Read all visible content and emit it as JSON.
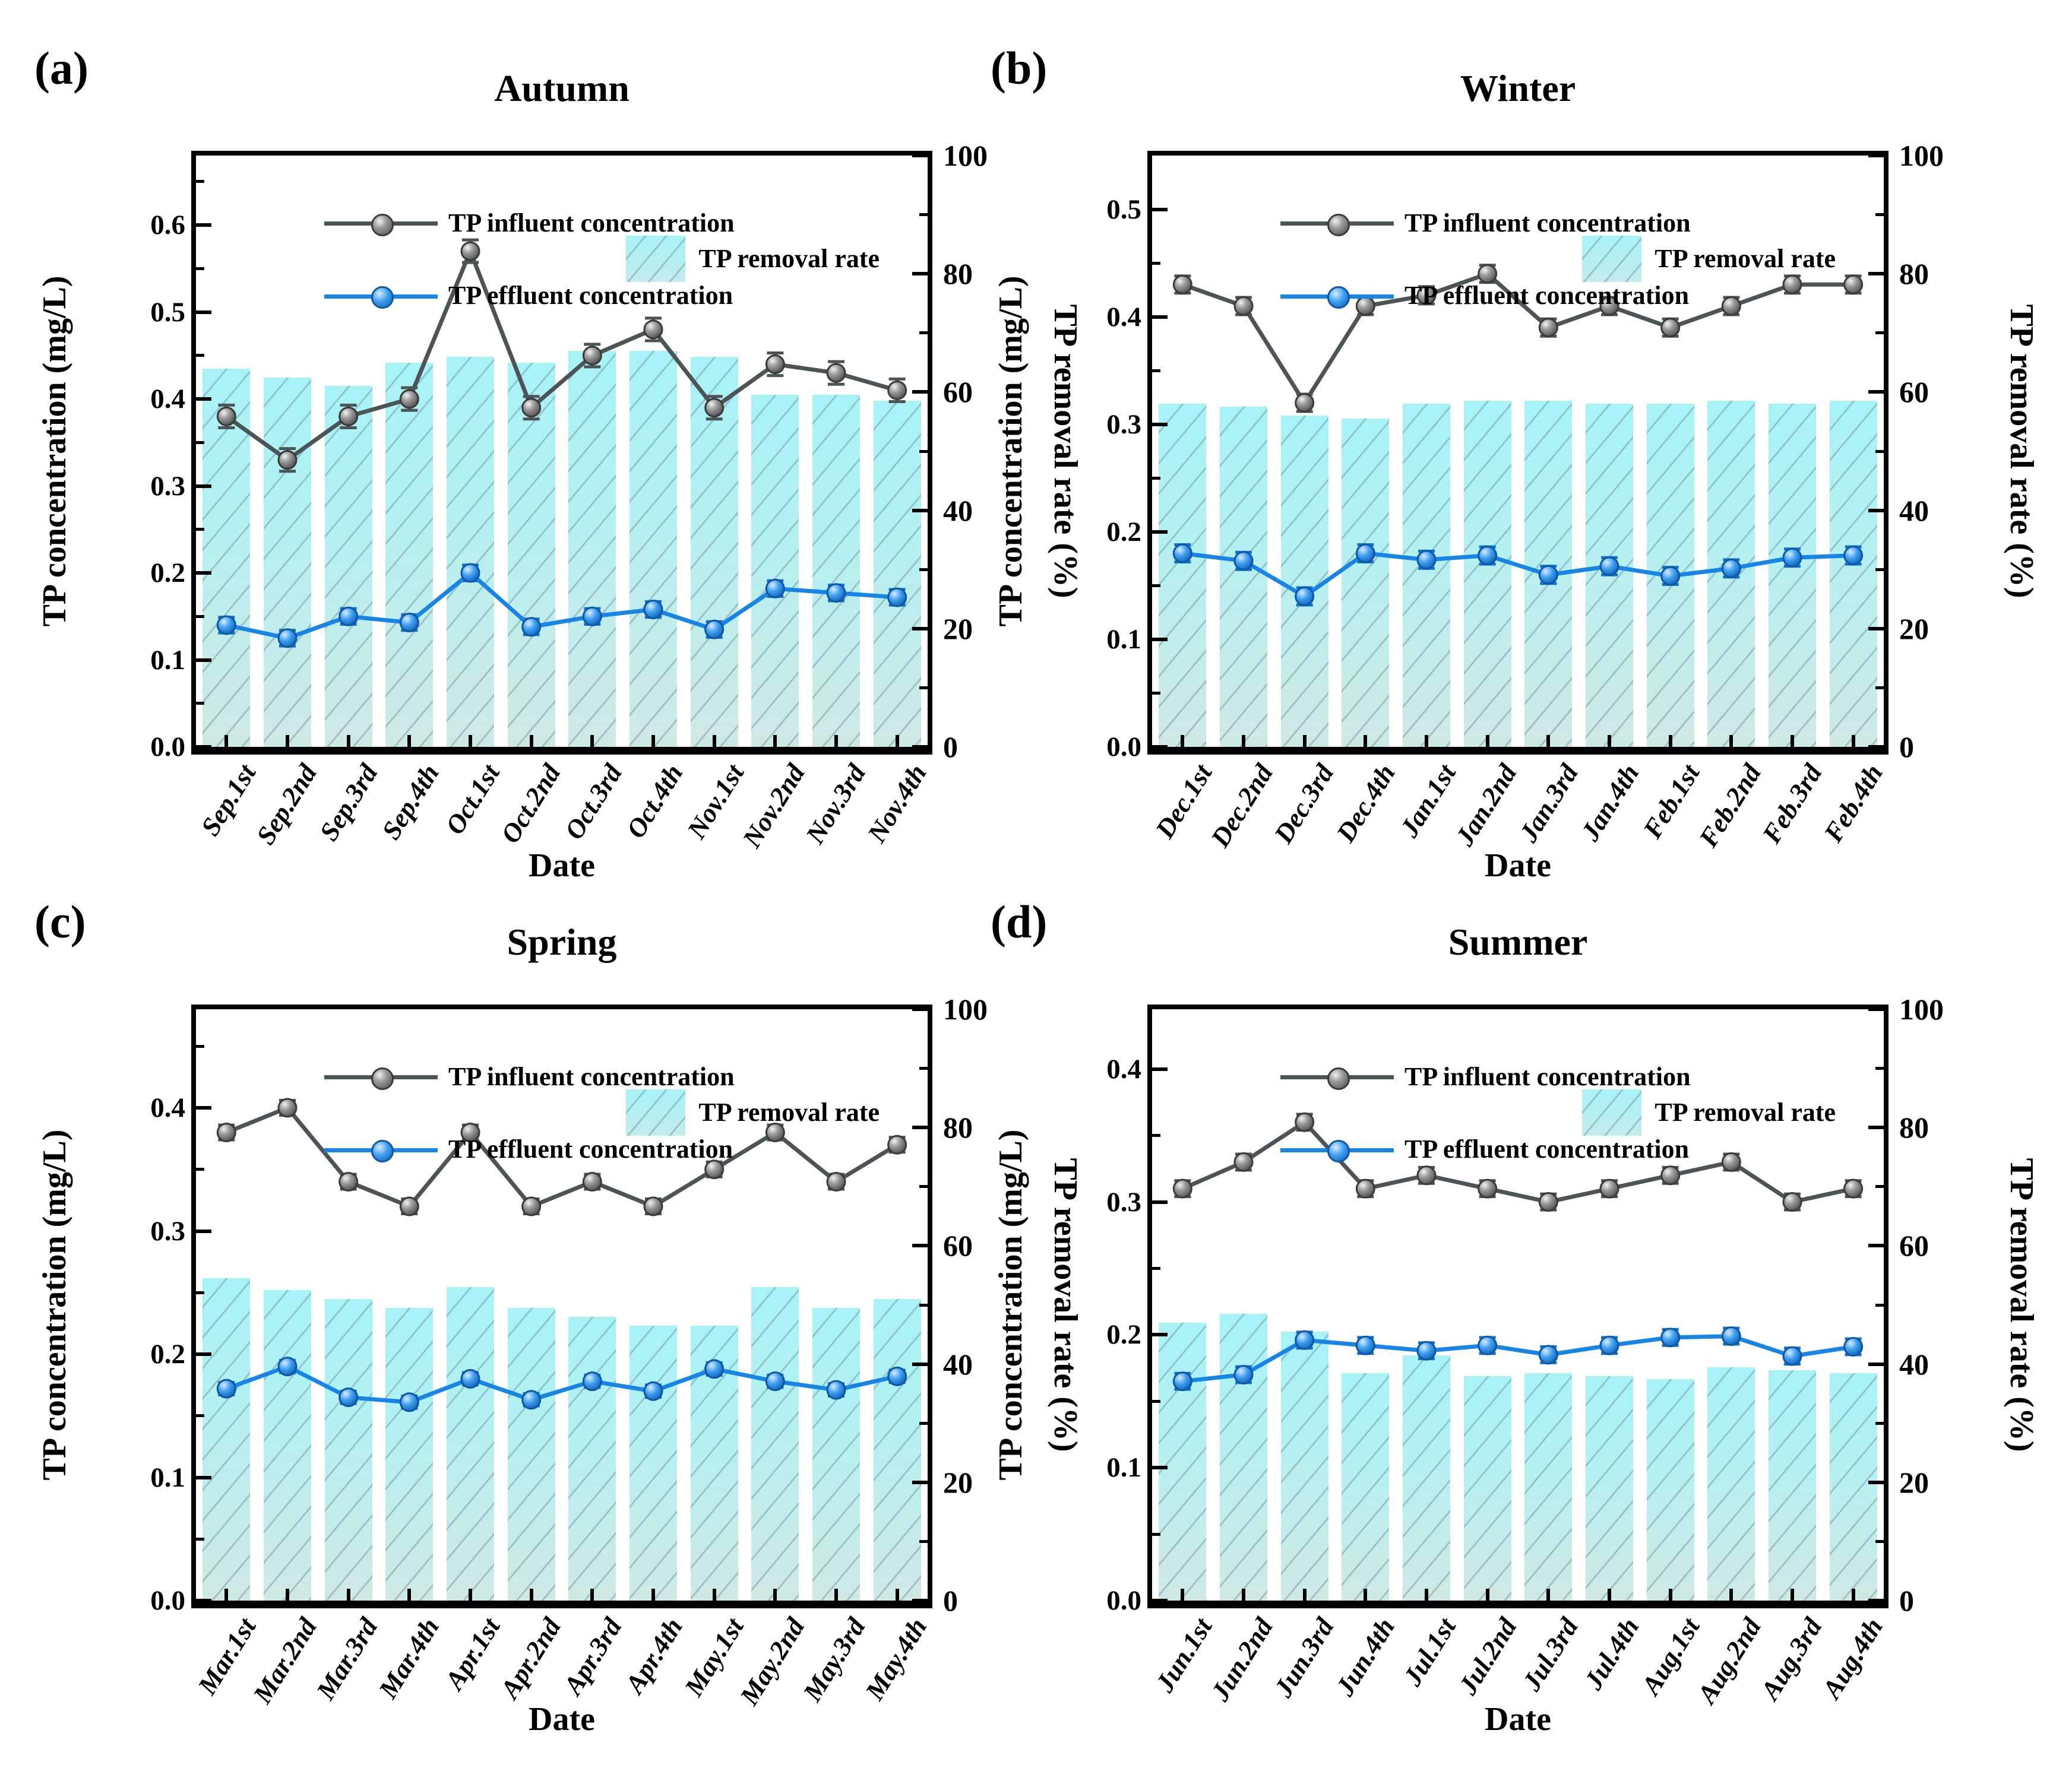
{
  "figure": {
    "x_axis_label": "Date",
    "y_left_label": "TP concentration (mg/L)",
    "y_right_label": "TP removal rate (%)"
  },
  "legend": {
    "influent": "TP influent concentration",
    "effluent": "TP effluent concentration",
    "removal": "TP removal rate"
  },
  "colors": {
    "influent_line": "#4c5456",
    "influent_err": "#4c5456",
    "effluent_line": "#1784e8",
    "effluent_err": "#1272cc",
    "bar_top": "#a7f3f8",
    "bar_bottom": "#cfe9e4",
    "axis": "#000000"
  },
  "chart_data": [
    {
      "panel_tag": "(a)",
      "title": "Autumn",
      "type": "bar+line",
      "xlabel": "Date",
      "ylabel_left": "TP concentration (mg/L)",
      "ylabel_right": "TP removal rate (%)",
      "categories": [
        "Sep.1st",
        "Sep.2nd",
        "Sep.3rd",
        "Sep.4th",
        "Oct.1st",
        "Oct.2nd",
        "Oct.3rd",
        "Oct.4th",
        "Nov.1st",
        "Nov.2nd",
        "Nov.3rd",
        "Nov.4th"
      ],
      "ylim_left": [
        0,
        0.68
      ],
      "yticks_left": [
        0,
        0.1,
        0.2,
        0.3,
        0.4,
        0.5,
        0.6
      ],
      "ylim_right": [
        0,
        100
      ],
      "yticks_right": [
        0,
        20,
        40,
        60,
        80,
        100
      ],
      "series": [
        {
          "name": "TP influent concentration",
          "type": "line",
          "axis": "left",
          "unit": "mg/L",
          "values": [
            0.38,
            0.33,
            0.38,
            0.4,
            0.57,
            0.39,
            0.45,
            0.48,
            0.39,
            0.44,
            0.43,
            0.41
          ],
          "error": 0.013
        },
        {
          "name": "TP effluent concentration",
          "type": "line",
          "axis": "left",
          "unit": "mg/L",
          "values": [
            0.14,
            0.125,
            0.15,
            0.143,
            0.2,
            0.138,
            0.15,
            0.158,
            0.135,
            0.182,
            0.177,
            0.172
          ],
          "error": 0.009
        },
        {
          "name": "TP removal rate",
          "type": "bar",
          "axis": "right",
          "unit": "%",
          "values": [
            64,
            62.5,
            61,
            65,
            66,
            65,
            67,
            67,
            66,
            59.5,
            59.5,
            58.5
          ]
        }
      ]
    },
    {
      "panel_tag": "(b)",
      "title": "Winter",
      "type": "bar+line",
      "xlabel": "Date",
      "ylabel_left": "TP concentration (mg/L)",
      "ylabel_right": "TP removal rate (%)",
      "categories": [
        "Dec.1st",
        "Dec.2nd",
        "Dec.3rd",
        "Dec.4th",
        "Jan.1st",
        "Jan.2nd",
        "Jan.3rd",
        "Jan.4th",
        "Feb.1st",
        "Feb.2nd",
        "Feb.3rd",
        "Feb.4th"
      ],
      "ylim_left": [
        0,
        0.55
      ],
      "yticks_left": [
        0,
        0.1,
        0.2,
        0.3,
        0.4,
        0.5
      ],
      "ylim_right": [
        0,
        100
      ],
      "yticks_right": [
        0,
        20,
        40,
        60,
        80,
        100
      ],
      "series": [
        {
          "name": "TP influent concentration",
          "type": "line",
          "axis": "left",
          "unit": "mg/L",
          "values": [
            0.43,
            0.41,
            0.32,
            0.41,
            0.42,
            0.44,
            0.39,
            0.41,
            0.39,
            0.41,
            0.43,
            0.43
          ],
          "error": 0.008
        },
        {
          "name": "TP effluent concentration",
          "type": "line",
          "axis": "left",
          "unit": "mg/L",
          "values": [
            0.18,
            0.173,
            0.14,
            0.18,
            0.174,
            0.178,
            0.16,
            0.168,
            0.159,
            0.166,
            0.176,
            0.178
          ],
          "error": 0.008
        },
        {
          "name": "TP removal rate",
          "type": "bar",
          "axis": "right",
          "unit": "%",
          "values": [
            58,
            57.5,
            56,
            55.5,
            58,
            58.5,
            58.5,
            58,
            58,
            58.5,
            58,
            58.5
          ]
        }
      ]
    },
    {
      "panel_tag": "(c)",
      "title": "Spring",
      "type": "bar+line",
      "xlabel": "Date",
      "ylabel_left": "TP concentration (mg/L)",
      "ylabel_right": "TP removal rate (%)",
      "categories": [
        "Mar.1st",
        "Mar.2nd",
        "Mar.3rd",
        "Mar.4th",
        "Apr.1st",
        "Apr.2nd",
        "Apr.3rd",
        "Apr.4th",
        "May.1st",
        "May.2nd",
        "May.3rd",
        "May.4th"
      ],
      "ylim_left": [
        0,
        0.48
      ],
      "yticks_left": [
        0,
        0.1,
        0.2,
        0.3,
        0.4
      ],
      "ylim_right": [
        0,
        100
      ],
      "yticks_right": [
        0,
        20,
        40,
        60,
        80,
        100
      ],
      "series": [
        {
          "name": "TP influent concentration",
          "type": "line",
          "axis": "left",
          "unit": "mg/L",
          "values": [
            0.38,
            0.4,
            0.34,
            0.32,
            0.38,
            0.32,
            0.34,
            0.32,
            0.35,
            0.38,
            0.34,
            0.37
          ],
          "error": 0.006
        },
        {
          "name": "TP effluent concentration",
          "type": "line",
          "axis": "left",
          "unit": "mg/L",
          "values": [
            0.172,
            0.19,
            0.165,
            0.161,
            0.18,
            0.163,
            0.178,
            0.17,
            0.188,
            0.178,
            0.171,
            0.182
          ],
          "error": 0.005
        },
        {
          "name": "TP removal rate",
          "type": "bar",
          "axis": "right",
          "unit": "%",
          "values": [
            54.5,
            52.5,
            51,
            49.5,
            53,
            49.5,
            48,
            46.5,
            46.5,
            53,
            49.5,
            51
          ]
        }
      ]
    },
    {
      "panel_tag": "(d)",
      "title": "Summer",
      "type": "bar+line",
      "xlabel": "Date",
      "ylabel_left": "TP concentration (mg/L)",
      "ylabel_right": "TP removal rate (%)",
      "categories": [
        "Jun.1st",
        "Jun.2nd",
        "Jun.3rd",
        "Jun.4th",
        "Jul.1st",
        "Jul.2nd",
        "Jul.3rd",
        "Jul.4th",
        "Aug.1st",
        "Aug.2nd",
        "Aug.3rd",
        "Aug.4th"
      ],
      "ylim_left": [
        0,
        0.445
      ],
      "yticks_left": [
        0,
        0.1,
        0.2,
        0.3,
        0.4
      ],
      "ylim_right": [
        0,
        100
      ],
      "yticks_right": [
        0,
        20,
        40,
        60,
        80,
        100
      ],
      "series": [
        {
          "name": "TP influent concentration",
          "type": "line",
          "axis": "left",
          "unit": "mg/L",
          "values": [
            0.31,
            0.33,
            0.36,
            0.31,
            0.32,
            0.31,
            0.3,
            0.31,
            0.32,
            0.33,
            0.3,
            0.31
          ],
          "error": 0.006
        },
        {
          "name": "TP effluent concentration",
          "type": "line",
          "axis": "left",
          "unit": "mg/L",
          "values": [
            0.165,
            0.17,
            0.196,
            0.192,
            0.188,
            0.192,
            0.185,
            0.192,
            0.198,
            0.199,
            0.184,
            0.191
          ],
          "error": 0.006
        },
        {
          "name": "TP removal rate",
          "type": "bar",
          "axis": "right",
          "unit": "%",
          "values": [
            47,
            48.5,
            45.5,
            38.5,
            41.5,
            38,
            38.5,
            38,
            37.5,
            39.5,
            39,
            38.5
          ]
        }
      ]
    }
  ]
}
